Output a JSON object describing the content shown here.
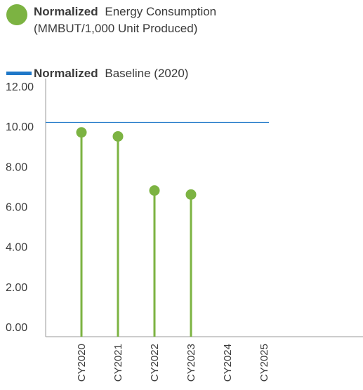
{
  "legend": {
    "series_bold": "Normalized",
    "series_rest": "Energy Consumption",
    "series_line2": "(MMBUT/1,000 Unit Produced)",
    "baseline_bold": "Normalized",
    "baseline_rest": "Baseline (2020)"
  },
  "colors": {
    "series": "#7cb342",
    "baseline": "#1f78c8",
    "axis": "#9a9a9a",
    "text": "#3a3a3a"
  },
  "chart_data": {
    "type": "lollipop",
    "categories": [
      "CY2020",
      "CY2021",
      "CY2022",
      "CY2023",
      "CY2024",
      "CY2025"
    ],
    "series": [
      {
        "name": "Normalized Energy Consumption (MMBUT/1,000 Unit Produced)",
        "values": [
          9.7,
          9.5,
          6.8,
          6.6,
          null,
          null
        ]
      }
    ],
    "baseline": {
      "name": "Normalized Baseline (2020)",
      "value": 10.2
    },
    "ylim": [
      0,
      12
    ],
    "yticks": [
      "0.00",
      "2.00",
      "4.00",
      "6.00",
      "8.00",
      "10.00",
      "12.00"
    ],
    "title": "",
    "xlabel": "",
    "ylabel": ""
  }
}
